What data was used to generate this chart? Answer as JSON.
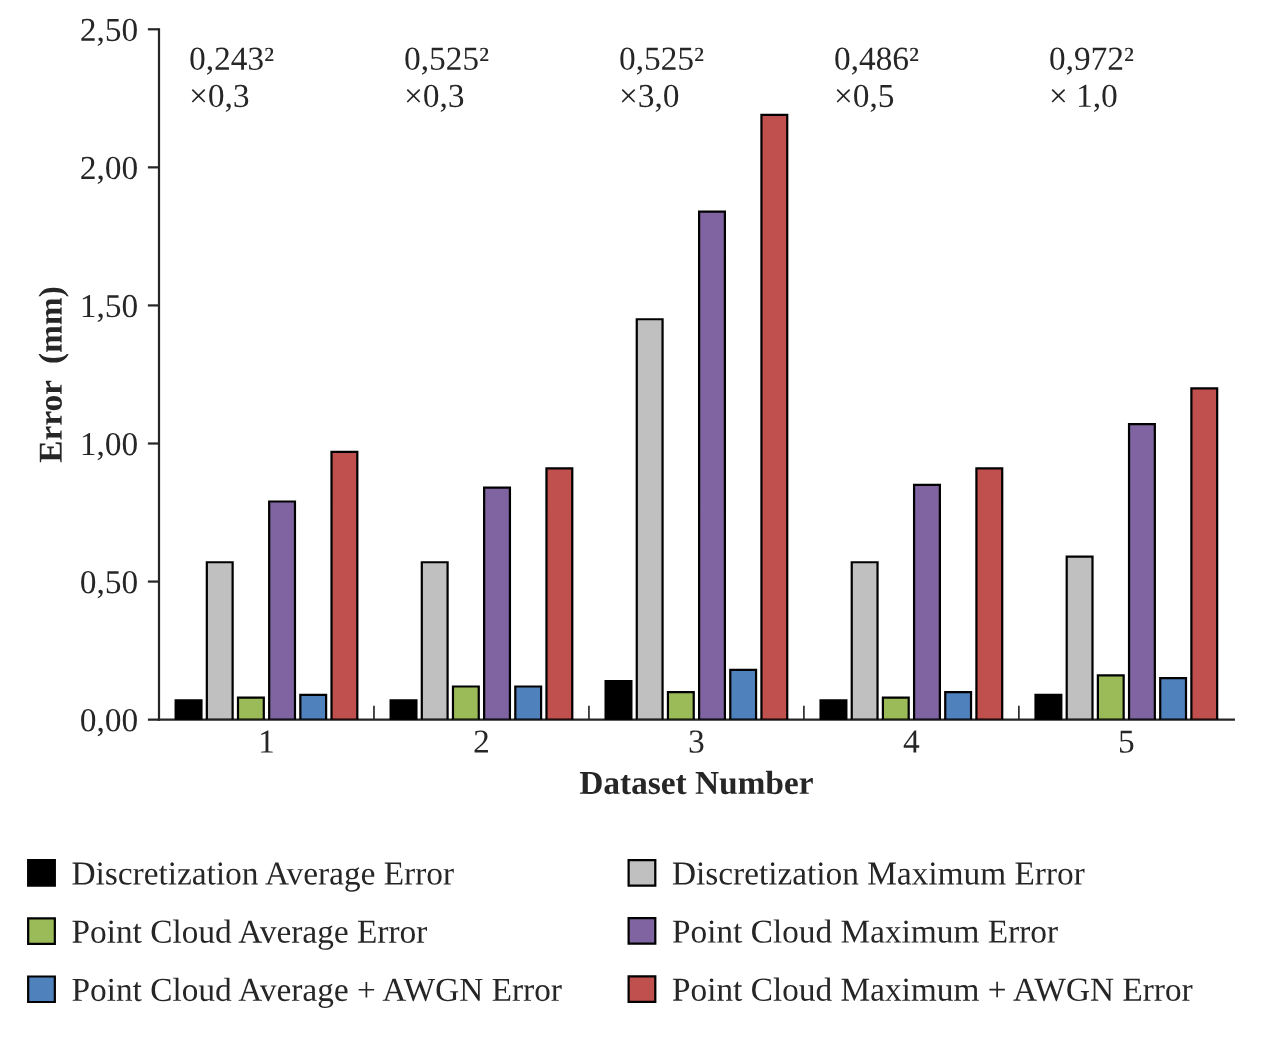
{
  "chart_data": {
    "type": "bar",
    "xlabel": "Dataset Number",
    "ylabel": "Error  (mm)",
    "categories": [
      "1",
      "2",
      "3",
      "4",
      "5"
    ],
    "series": [
      {
        "name": "Discretization Average Error",
        "color": "#000000",
        "values": [
          0.07,
          0.07,
          0.14,
          0.07,
          0.09
        ]
      },
      {
        "name": "Discretization Maximum Error",
        "color": "#c0c0c0",
        "values": [
          0.57,
          0.57,
          1.45,
          0.57,
          0.59
        ]
      },
      {
        "name": "Point Cloud Average Error",
        "color": "#9bbb59",
        "values": [
          0.08,
          0.12,
          0.1,
          0.08,
          0.16
        ]
      },
      {
        "name": "Point Cloud Maximum Error",
        "color": "#8064a2",
        "values": [
          0.79,
          0.84,
          1.84,
          0.85,
          1.07
        ]
      },
      {
        "name": "Point Cloud Average + AWGN Error",
        "color": "#4f81bd",
        "values": [
          0.09,
          0.12,
          0.18,
          0.1,
          0.15
        ]
      },
      {
        "name": "Point Cloud Maximum + AWGN Error",
        "color": "#c0504d",
        "values": [
          0.97,
          0.91,
          2.19,
          0.91,
          1.2
        ]
      }
    ],
    "ylim": [
      0,
      2.5
    ],
    "yticks": [
      {
        "value": 0,
        "label": "0,00"
      },
      {
        "value": 0.5,
        "label": "0,50"
      },
      {
        "value": 1.0,
        "label": "1,00"
      },
      {
        "value": 1.5,
        "label": "1,50"
      },
      {
        "value": 2.0,
        "label": "2,00"
      },
      {
        "value": 2.5,
        "label": "2,50"
      }
    ],
    "annotations": [
      "0,243²\n×0,3",
      "0,525²\n×0,3",
      "0,525²\n×3,0",
      "0,486²\n×0,5",
      "0,972²\n× 1,0"
    ],
    "grid": false,
    "legend": "bottom"
  }
}
